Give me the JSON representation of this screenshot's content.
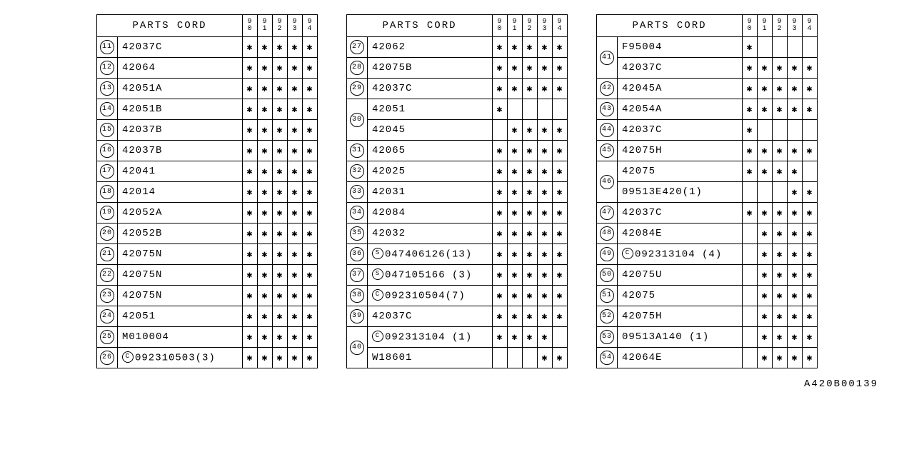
{
  "header": {
    "parts_label": "PARTS CORD",
    "years": [
      "9",
      "0",
      "9",
      "1",
      "9",
      "2",
      "9",
      "3",
      "9",
      "4"
    ]
  },
  "year_cols": [
    "90",
    "91",
    "92",
    "93",
    "94"
  ],
  "footer": "A420B00139",
  "tables": [
    {
      "rows": [
        {
          "num": "11",
          "parts": [
            {
              "code": "42037C",
              "marks": [
                "*",
                "*",
                "*",
                "*",
                "*"
              ]
            }
          ]
        },
        {
          "num": "12",
          "parts": [
            {
              "code": "42064",
              "marks": [
                "*",
                "*",
                "*",
                "*",
                "*"
              ]
            }
          ]
        },
        {
          "num": "13",
          "parts": [
            {
              "code": "42051A",
              "marks": [
                "*",
                "*",
                "*",
                "*",
                "*"
              ]
            }
          ]
        },
        {
          "num": "14",
          "parts": [
            {
              "code": "42051B",
              "marks": [
                "*",
                "*",
                "*",
                "*",
                "*"
              ]
            }
          ]
        },
        {
          "num": "15",
          "parts": [
            {
              "code": "42037B",
              "marks": [
                "*",
                "*",
                "*",
                "*",
                "*"
              ]
            }
          ]
        },
        {
          "num": "16",
          "parts": [
            {
              "code": "42037B",
              "marks": [
                "*",
                "*",
                "*",
                "*",
                "*"
              ]
            }
          ]
        },
        {
          "num": "17",
          "parts": [
            {
              "code": "42041",
              "marks": [
                "*",
                "*",
                "*",
                "*",
                "*"
              ]
            }
          ]
        },
        {
          "num": "18",
          "parts": [
            {
              "code": "42014",
              "marks": [
                "*",
                "*",
                "*",
                "*",
                "*"
              ]
            }
          ]
        },
        {
          "num": "19",
          "parts": [
            {
              "code": "42052A",
              "marks": [
                "*",
                "*",
                "*",
                "*",
                "*"
              ]
            }
          ]
        },
        {
          "num": "20",
          "parts": [
            {
              "code": "42052B",
              "marks": [
                "*",
                "*",
                "*",
                "*",
                "*"
              ]
            }
          ]
        },
        {
          "num": "21",
          "parts": [
            {
              "code": "42075N",
              "marks": [
                "*",
                "*",
                "*",
                "*",
                "*"
              ]
            }
          ]
        },
        {
          "num": "22",
          "parts": [
            {
              "code": "42075N",
              "marks": [
                "*",
                "*",
                "*",
                "*",
                "*"
              ]
            }
          ]
        },
        {
          "num": "23",
          "parts": [
            {
              "code": "42075N",
              "marks": [
                "*",
                "*",
                "*",
                "*",
                "*"
              ]
            }
          ]
        },
        {
          "num": "24",
          "parts": [
            {
              "code": "42051",
              "marks": [
                "*",
                "*",
                "*",
                "*",
                "*"
              ]
            }
          ]
        },
        {
          "num": "25",
          "parts": [
            {
              "code": "M010004",
              "marks": [
                "*",
                "*",
                "*",
                "*",
                "*"
              ]
            }
          ]
        },
        {
          "num": "26",
          "parts": [
            {
              "prefix": "C",
              "code": "092310503(3)",
              "marks": [
                "*",
                "*",
                "*",
                "*",
                "*"
              ]
            }
          ]
        }
      ]
    },
    {
      "rows": [
        {
          "num": "27",
          "parts": [
            {
              "code": "42062",
              "marks": [
                "*",
                "*",
                "*",
                "*",
                "*"
              ]
            }
          ]
        },
        {
          "num": "28",
          "parts": [
            {
              "code": "42075B",
              "marks": [
                "*",
                "*",
                "*",
                "*",
                "*"
              ]
            }
          ]
        },
        {
          "num": "29",
          "parts": [
            {
              "code": "42037C",
              "marks": [
                "*",
                "*",
                "*",
                "*",
                "*"
              ]
            }
          ]
        },
        {
          "num": "30",
          "parts": [
            {
              "code": "42051",
              "marks": [
                "*",
                "",
                "",
                "",
                ""
              ]
            },
            {
              "code": "42045",
              "marks": [
                "",
                "*",
                "*",
                "*",
                "*"
              ]
            }
          ]
        },
        {
          "num": "31",
          "parts": [
            {
              "code": "42065",
              "marks": [
                "*",
                "*",
                "*",
                "*",
                "*"
              ]
            }
          ]
        },
        {
          "num": "32",
          "parts": [
            {
              "code": "42025",
              "marks": [
                "*",
                "*",
                "*",
                "*",
                "*"
              ]
            }
          ]
        },
        {
          "num": "33",
          "parts": [
            {
              "code": "42031",
              "marks": [
                "*",
                "*",
                "*",
                "*",
                "*"
              ]
            }
          ]
        },
        {
          "num": "34",
          "parts": [
            {
              "code": "42084",
              "marks": [
                "*",
                "*",
                "*",
                "*",
                "*"
              ]
            }
          ]
        },
        {
          "num": "35",
          "parts": [
            {
              "code": "42032",
              "marks": [
                "*",
                "*",
                "*",
                "*",
                "*"
              ]
            }
          ]
        },
        {
          "num": "36",
          "parts": [
            {
              "prefix": "S",
              "code": "047406126(13)",
              "marks": [
                "*",
                "*",
                "*",
                "*",
                "*"
              ]
            }
          ]
        },
        {
          "num": "37",
          "parts": [
            {
              "prefix": "S",
              "code": "047105166 (3)",
              "marks": [
                "*",
                "*",
                "*",
                "*",
                "*"
              ]
            }
          ]
        },
        {
          "num": "38",
          "parts": [
            {
              "prefix": "C",
              "code": "092310504(7)",
              "marks": [
                "*",
                "*",
                "*",
                "*",
                "*"
              ]
            }
          ]
        },
        {
          "num": "39",
          "parts": [
            {
              "code": "42037C",
              "marks": [
                "*",
                "*",
                "*",
                "*",
                "*"
              ]
            }
          ]
        },
        {
          "num": "40",
          "parts": [
            {
              "prefix": "C",
              "code": "092313104 (1)",
              "marks": [
                "*",
                "*",
                "*",
                "*",
                ""
              ]
            },
            {
              "code": "W18601",
              "marks": [
                "",
                "",
                "",
                "*",
                "*"
              ]
            }
          ]
        }
      ]
    },
    {
      "rows": [
        {
          "num": "41",
          "parts": [
            {
              "code": "F95004",
              "marks": [
                "*",
                "",
                "",
                "",
                ""
              ]
            },
            {
              "code": "42037C",
              "marks": [
                "*",
                "*",
                "*",
                "*",
                "*"
              ]
            }
          ]
        },
        {
          "num": "42",
          "parts": [
            {
              "code": "42045A",
              "marks": [
                "*",
                "*",
                "*",
                "*",
                "*"
              ]
            }
          ]
        },
        {
          "num": "43",
          "parts": [
            {
              "code": "42054A",
              "marks": [
                "*",
                "*",
                "*",
                "*",
                "*"
              ]
            }
          ]
        },
        {
          "num": "44",
          "parts": [
            {
              "code": "42037C",
              "marks": [
                "*",
                "",
                "",
                "",
                ""
              ]
            }
          ]
        },
        {
          "num": "45",
          "parts": [
            {
              "code": "42075H",
              "marks": [
                "*",
                "*",
                "*",
                "*",
                "*"
              ]
            }
          ]
        },
        {
          "num": "46",
          "parts": [
            {
              "code": "42075",
              "marks": [
                "*",
                "*",
                "*",
                "*",
                ""
              ]
            },
            {
              "code": "09513E420(1)",
              "marks": [
                "",
                "",
                "",
                "*",
                "*"
              ]
            }
          ]
        },
        {
          "num": "47",
          "parts": [
            {
              "code": "42037C",
              "marks": [
                "*",
                "*",
                "*",
                "*",
                "*"
              ]
            }
          ]
        },
        {
          "num": "48",
          "parts": [
            {
              "code": "42084E",
              "marks": [
                "",
                "*",
                "*",
                "*",
                "*"
              ]
            }
          ]
        },
        {
          "num": "49",
          "parts": [
            {
              "prefix": "C",
              "code": "092313104 (4)",
              "marks": [
                "",
                "*",
                "*",
                "*",
                "*"
              ]
            }
          ]
        },
        {
          "num": "50",
          "parts": [
            {
              "code": "42075U",
              "marks": [
                "",
                "*",
                "*",
                "*",
                "*"
              ]
            }
          ]
        },
        {
          "num": "51",
          "parts": [
            {
              "code": "42075",
              "marks": [
                "",
                "*",
                "*",
                "*",
                "*"
              ]
            }
          ]
        },
        {
          "num": "52",
          "parts": [
            {
              "code": "42075H",
              "marks": [
                "",
                "*",
                "*",
                "*",
                "*"
              ]
            }
          ]
        },
        {
          "num": "53",
          "parts": [
            {
              "code": "09513A140 (1)",
              "marks": [
                "",
                "*",
                "*",
                "*",
                "*"
              ]
            }
          ]
        },
        {
          "num": "54",
          "parts": [
            {
              "code": "42064E",
              "marks": [
                "",
                "*",
                "*",
                "*",
                "*"
              ]
            }
          ]
        }
      ]
    }
  ]
}
